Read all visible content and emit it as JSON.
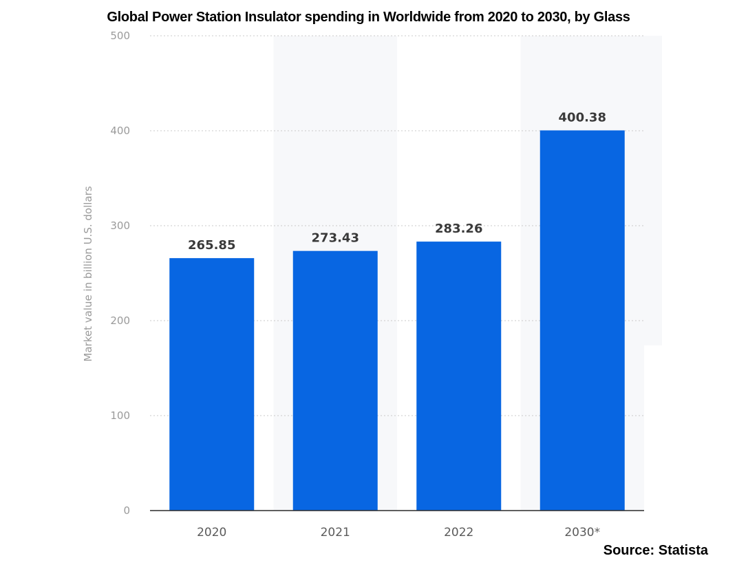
{
  "chart_data": {
    "type": "bar",
    "title": "Global Power Station Insulator spending in Worldwide from 2020 to 2030, by Glass",
    "categories": [
      "2020",
      "2021",
      "2022",
      "2030*"
    ],
    "values": [
      265.85,
      273.43,
      283.26,
      400.38
    ],
    "value_labels": [
      "265.85",
      "273.43",
      "283.26",
      "400.38"
    ],
    "xlabel": "",
    "ylabel": "Market value in billion U.S. dollars",
    "ylim": [
      0,
      500
    ],
    "yticks": [
      0,
      100,
      200,
      300,
      400,
      500
    ],
    "ytick_labels": [
      "0",
      "100",
      "200",
      "300",
      "400",
      "500"
    ],
    "grid": true,
    "bar_color": "#0866e2",
    "source": "Source: Statista"
  }
}
